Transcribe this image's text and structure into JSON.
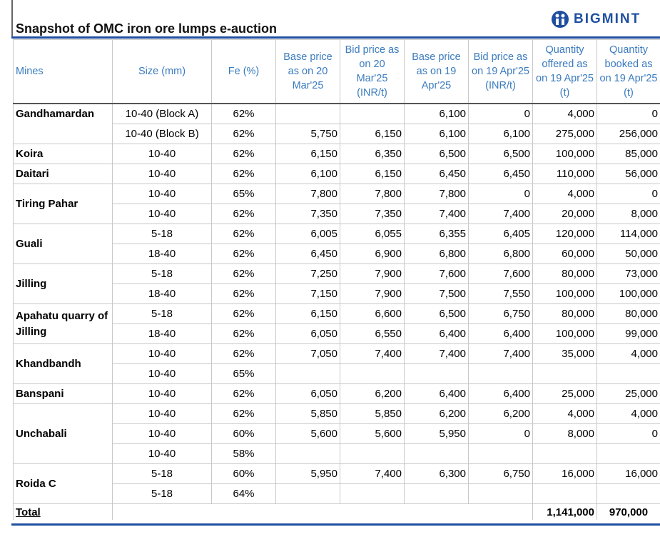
{
  "header": {
    "title": "Snapshot of OMC iron ore lumps e-auction",
    "logo": "BIGMINT"
  },
  "table": {
    "columns": [
      "Mines",
      "Size (mm)",
      "Fe (%)",
      "Base price as on 20 Mar'25",
      "Bid price as on 20 Mar'25 (INR/t)",
      "Base price as on 19 Apr'25",
      "Bid price as on 19 Apr'25 (INR/t)",
      "Quantity offered as on 19 Apr'25 (t)",
      "Quantity booked as on 19 Apr'25 (t)"
    ],
    "groups": [
      {
        "mine": "Gandhamardan",
        "rows": [
          [
            "10-40 (Block A)",
            "62%",
            null,
            null,
            "6,100",
            "0",
            "4,000",
            "0"
          ],
          [
            "10-40 (Block B)",
            "62%",
            "5,750",
            "6,150",
            "6,100",
            "6,100",
            "275,000",
            "256,000"
          ]
        ]
      },
      {
        "mine": "Koira",
        "rows": [
          [
            "10-40",
            "62%",
            "6,150",
            "6,350",
            "6,500",
            "6,500",
            "100,000",
            "85,000"
          ]
        ]
      },
      {
        "mine": "Daitari",
        "rows": [
          [
            "10-40",
            "62%",
            "6,100",
            "6,150",
            "6,450",
            "6,450",
            "110,000",
            "56,000"
          ]
        ]
      },
      {
        "mine": "Tiring Pahar",
        "rows": [
          [
            "10-40",
            "65%",
            "7,800",
            "7,800",
            "7,800",
            "0",
            "4,000",
            "0"
          ],
          [
            "10-40",
            "62%",
            "7,350",
            "7,350",
            "7,400",
            "7,400",
            "20,000",
            "8,000"
          ]
        ]
      },
      {
        "mine": "Guali",
        "rows": [
          [
            "5-18",
            "62%",
            "6,005",
            "6,055",
            "6,355",
            "6,405",
            "120,000",
            "114,000"
          ],
          [
            "18-40",
            "62%",
            "6,450",
            "6,900",
            "6,800",
            "6,800",
            "60,000",
            "50,000"
          ]
        ]
      },
      {
        "mine": "Jilling",
        "rows": [
          [
            "5-18",
            "62%",
            "7,250",
            "7,900",
            "7,600",
            "7,600",
            "80,000",
            "73,000"
          ],
          [
            "18-40",
            "62%",
            "7,150",
            "7,900",
            "7,500",
            "7,550",
            "100,000",
            "100,000"
          ]
        ]
      },
      {
        "mine": "Apahatu quarry of Jilling",
        "rows": [
          [
            "5-18",
            "62%",
            "6,150",
            "6,600",
            "6,500",
            "6,750",
            "80,000",
            "80,000"
          ],
          [
            "18-40",
            "62%",
            "6,050",
            "6,550",
            "6,400",
            "6,400",
            "100,000",
            "99,000"
          ]
        ]
      },
      {
        "mine": "Khandbandh",
        "rows": [
          [
            "10-40",
            "62%",
            "7,050",
            "7,400",
            "7,400",
            "7,400",
            "35,000",
            "4,000"
          ],
          [
            "10-40",
            "65%",
            null,
            null,
            null,
            null,
            null,
            null
          ]
        ]
      },
      {
        "mine": "Banspani",
        "rows": [
          [
            "10-40",
            "62%",
            "6,050",
            "6,200",
            "6,400",
            "6,400",
            "25,000",
            "25,000"
          ]
        ]
      },
      {
        "mine": "Unchabali",
        "rows": [
          [
            "10-40",
            "62%",
            "5,850",
            "5,850",
            "6,200",
            "6,200",
            "4,000",
            "4,000"
          ],
          [
            "10-40",
            "60%",
            "5,600",
            "5,600",
            "5,950",
            "0",
            "8,000",
            "0"
          ],
          [
            "10-40",
            "58%",
            null,
            null,
            null,
            null,
            null,
            null
          ]
        ]
      },
      {
        "mine": "Roida C",
        "rows": [
          [
            "5-18",
            "60%",
            "5,950",
            "7,400",
            "6,300",
            "6,750",
            "16,000",
            "16,000"
          ],
          [
            "5-18",
            "64%",
            null,
            null,
            null,
            null,
            null,
            null
          ]
        ]
      }
    ],
    "total": {
      "label": "Total",
      "offered": "1,141,000",
      "booked": "970,000"
    }
  }
}
